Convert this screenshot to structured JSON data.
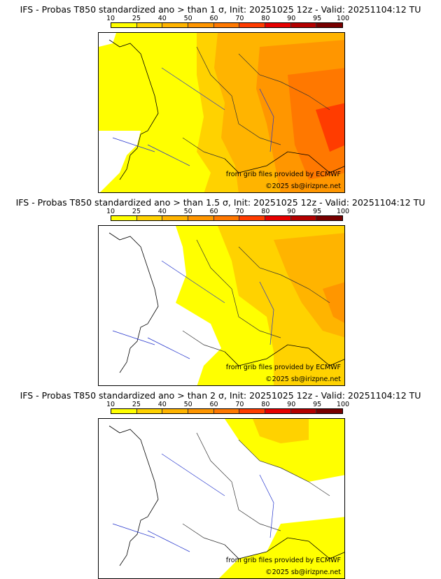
{
  "legend": {
    "labels": [
      "10",
      "25",
      "40",
      "50",
      "60",
      "70",
      "80",
      "90",
      "95",
      "100"
    ],
    "colors": [
      "#ffff00",
      "#ffd200",
      "#ffb400",
      "#ff9600",
      "#ff7800",
      "#ff3c00",
      "#e60000",
      "#b40000",
      "#780000"
    ]
  },
  "credits": {
    "source": "from grib files provided by ECMWF",
    "copyright": "©2025 sb@irizpne.net"
  },
  "panels": [
    {
      "title": "IFS - Probas T850  standardized ano > than 1 σ, Init: 20251025 12z - Valid: 20251104:12 TU",
      "threshold": "1 σ"
    },
    {
      "title": "IFS - Probas T850  standardized ano > than 1.5 σ, Init: 20251025 12z - Valid: 20251104:12 TU",
      "threshold": "1.5 σ"
    },
    {
      "title": "IFS - Probas T850  standardized ano > than 2 σ, Init: 20251025 12z - Valid: 20251104:12 TU",
      "threshold": "2 σ"
    }
  ],
  "colors": {
    "sea": "#ffffff",
    "coast": "#000000",
    "rivers": "#2233cc",
    "borders": "#999999"
  }
}
